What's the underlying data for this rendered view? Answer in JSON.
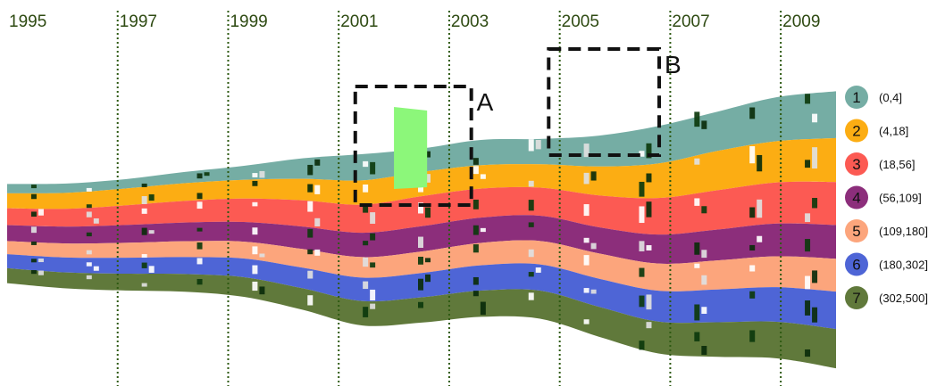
{
  "chart_data": {
    "type": "area",
    "title": "",
    "x_tick_labels": [
      "1995",
      "1997",
      "1999",
      "2001",
      "2003",
      "2005",
      "2007",
      "2009"
    ],
    "x_tick_values": [
      1995,
      1997,
      1999,
      2001,
      2003,
      2005,
      2007,
      2009
    ],
    "x_range": [
      1995,
      2010
    ],
    "grid": "vertical dotted lines at labeled years",
    "legend_position": "right",
    "series": [
      {
        "name": "1",
        "range": "(0,4]",
        "color": "#75ada4",
        "values": [
          10,
          10,
          10,
          12,
          15,
          22,
          28,
          25,
          27,
          27,
          33,
          40,
          42,
          47,
          50
        ]
      },
      {
        "name": "2",
        "range": "(4,18]",
        "color": "#fcad13",
        "values": [
          16,
          17,
          18,
          19,
          20,
          23,
          26,
          26,
          25,
          25,
          31,
          37,
          42,
          44,
          47
        ]
      },
      {
        "name": "3",
        "range": "(18,56]",
        "color": "#fc5a53",
        "values": [
          18,
          19,
          21,
          23,
          25,
          28,
          30,
          32,
          31,
          30,
          34,
          39,
          42,
          44,
          46
        ]
      },
      {
        "name": "4",
        "range": "(56,109]",
        "color": "#8c2e7b",
        "values": [
          17,
          18,
          19,
          20,
          21,
          24,
          26,
          27,
          27,
          27,
          28,
          31,
          33,
          35,
          36
        ]
      },
      {
        "name": "5",
        "range": "(109,180]",
        "color": "#fca57c",
        "values": [
          14,
          15,
          16,
          17,
          18,
          20,
          22,
          23,
          24,
          25,
          27,
          29,
          31,
          33,
          35
        ]
      },
      {
        "name": "6",
        "range": "(180,302]",
        "color": "#4e65d6",
        "values": [
          15,
          16,
          17,
          18,
          20,
          22,
          25,
          26,
          27,
          28,
          30,
          33,
          35,
          37,
          40
        ]
      },
      {
        "name": "7",
        "range": "(302,500]",
        "color": "#60793b",
        "values": [
          16,
          17,
          18,
          19,
          21,
          23,
          26,
          27,
          28,
          30,
          32,
          34,
          37,
          39,
          42
        ]
      }
    ],
    "annotations": [
      {
        "label": "A",
        "x_range": [
          2001.3,
          2003.4
        ]
      },
      {
        "label": "B",
        "x_range": [
          2004.8,
          2006.8
        ]
      }
    ],
    "highlight_color": "#8cf77a"
  }
}
